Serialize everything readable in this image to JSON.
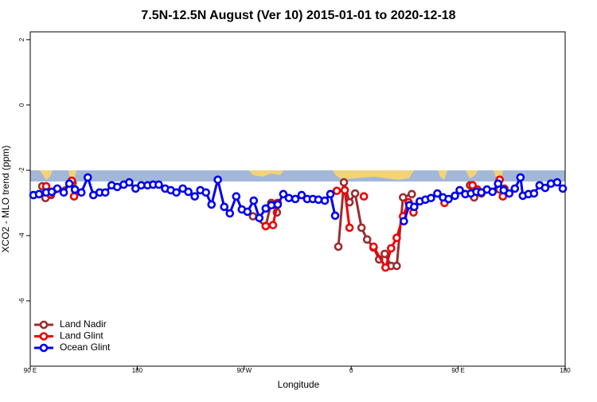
{
  "chart_data": {
    "type": "line",
    "title": "7.5N-12.5N August (Ver 10)   2015-01-01 to 2020-12-18",
    "x_label": "Longitude",
    "y_label": "XCO2 - MLO trend (ppm)",
    "xlim": [
      90,
      540
    ],
    "xticks": [
      {
        "value": 90,
        "label": "90 E"
      },
      180,
      {
        "value": 270,
        "label": "90 W"
      },
      {
        "value": 360,
        "label": "0"
      },
      {
        "value": 450,
        "label": "90 E"
      },
      {
        "value": 540,
        "label": "180"
      }
    ],
    "ylim": [
      -8.0,
      2.24
    ],
    "yticks": [
      2,
      0,
      -2,
      -4,
      -6
    ],
    "legend": "bottom-left",
    "series": [
      {
        "name": "Land Nadir",
        "color": "#9b2d30",
        "x": [
          100.1,
          102.8,
          107.5,
          125.6,
          null,
          277.4,
          288.1,
          292.8,
          297.5,
          null,
          349.2,
          353.9,
          358.6,
          363.3,
          368.7,
          373.4,
          378.8,
          383.5,
          388.2,
          393.6,
          398.3,
          403.6,
          411.0,
          null,
          460.0,
          463.4,
          469.5,
          484.9,
          488.9
        ],
        "values": [
          -2.49,
          -2.85,
          -2.76,
          -2.39,
          null,
          -3.41,
          -3.71,
          -3.0,
          -3.29,
          null,
          -4.34,
          -2.37,
          -2.98,
          -2.71,
          -3.76,
          -4.12,
          -4.37,
          -4.73,
          -4.56,
          -4.93,
          -4.93,
          -2.83,
          -2.73,
          null,
          -2.46,
          -2.83,
          -2.71,
          -2.59,
          -2.56
        ]
      },
      {
        "name": "Land Glint",
        "color": "#ee0000",
        "x": [
          103.4,
          106.8,
          null,
          124.9,
          126.9,
          null,
          288.1,
          294.2,
          298.2,
          null,
          347.9,
          354.6,
          358.6,
          null,
          370.7,
          null,
          378.8,
          388.9,
          393.6,
          398.3,
          403.6,
          408.3,
          412.4,
          null,
          438.5,
          null,
          462.1,
          466.1,
          null,
          484.9,
          487.6
        ],
        "values": [
          -2.49,
          -2.73,
          null,
          -2.32,
          -2.8,
          null,
          -3.71,
          -3.68,
          -3.0,
          null,
          -2.63,
          -2.61,
          -3.76,
          null,
          -2.8,
          null,
          -4.34,
          -4.98,
          -4.39,
          -4.07,
          -3.41,
          -2.98,
          -3.29,
          null,
          -3.0,
          null,
          -2.46,
          -2.59,
          null,
          -2.29,
          -2.8
        ]
      },
      {
        "name": "Ocean Glint",
        "color": "#0000ee",
        "x": [
          92.7,
          97.4,
          103.4,
          108.1,
          112.8,
          118.2,
          122.9,
          127.6,
          133.0,
          138.4,
          143.1,
          148.4,
          153.1,
          158.5,
          163.2,
          168.6,
          173.3,
          178.6,
          183.4,
          188.7,
          193.4,
          198.1,
          203.5,
          208.2,
          212.9,
          218.3,
          223.0,
          228.4,
          233.1,
          237.8,
          242.5,
          247.8,
          253.2,
          257.9,
          263.3,
          268.0,
          272.7,
          278.0,
          282.7,
          288.1,
          292.8,
          298.2,
          302.9,
          307.6,
          313.0,
          318.3,
          323.0,
          327.7,
          332.4,
          337.8,
          342.5,
          346.5,
          null,
          404.3,
          409.0,
          413.0,
          417.7,
          422.4,
          427.1,
          432.5,
          437.2,
          441.9,
          447.3,
          451.3,
          456.0,
          460.7,
          465.4,
          469.5,
          474.2,
          478.9,
          483.6,
          488.3,
          493.0,
          497.7,
          502.4,
          504.4,
          509.1,
          513.8,
          518.5,
          523.2,
          528.0,
          533.3,
          538.0
        ],
        "values": [
          -2.76,
          -2.73,
          -2.68,
          -2.66,
          -2.56,
          -2.68,
          -2.41,
          -2.59,
          -2.68,
          -2.22,
          -2.76,
          -2.68,
          -2.68,
          -2.46,
          -2.51,
          -2.44,
          -2.37,
          -2.56,
          -2.46,
          -2.46,
          -2.44,
          -2.44,
          -2.56,
          -2.61,
          -2.68,
          -2.56,
          -2.66,
          -2.8,
          -2.61,
          -2.68,
          -3.05,
          -2.29,
          -3.12,
          -3.32,
          -2.8,
          -3.2,
          -3.27,
          -2.93,
          -3.46,
          -3.17,
          -3.07,
          -3.05,
          -2.73,
          -2.85,
          -2.88,
          -2.76,
          -2.88,
          -2.88,
          -2.9,
          -2.93,
          -2.73,
          -3.39,
          null,
          -3.56,
          -3.07,
          -3.12,
          -2.95,
          -2.9,
          -2.85,
          -2.71,
          -2.83,
          -2.88,
          -2.78,
          -2.61,
          -2.73,
          -2.71,
          -2.66,
          -2.68,
          -2.59,
          -2.66,
          -2.41,
          -2.61,
          -2.71,
          -2.56,
          -2.22,
          -2.78,
          -2.73,
          -2.71,
          -2.46,
          -2.54,
          -2.41,
          -2.37,
          -2.56
        ]
      }
    ]
  }
}
